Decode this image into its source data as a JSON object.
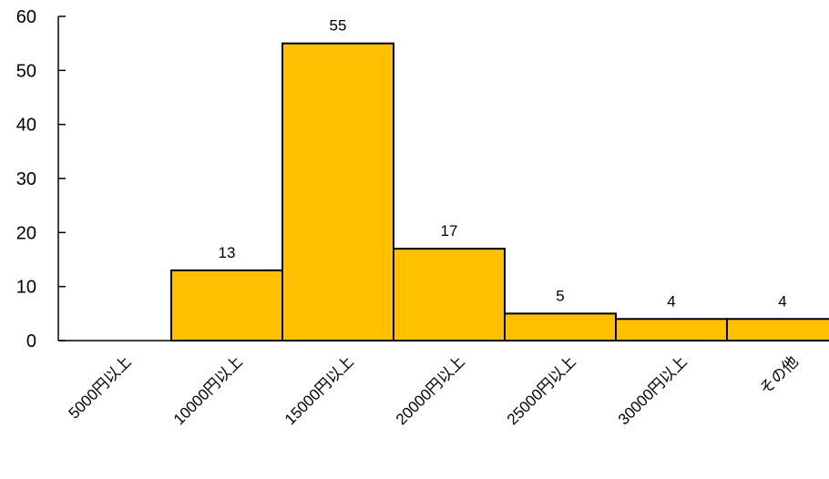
{
  "chart_data": {
    "type": "bar",
    "categories": [
      "5000円以上",
      "10000円以上",
      "15000円以上",
      "20000円以上",
      "25000円以上",
      "30000円以上",
      "その他"
    ],
    "values": [
      0,
      13,
      55,
      17,
      5,
      4,
      4
    ],
    "data_labels": [
      "",
      "13",
      "55",
      "17",
      "5",
      "4",
      "4"
    ],
    "title": "",
    "xlabel": "",
    "ylabel": "",
    "ylim": [
      0,
      60
    ],
    "yticks": [
      "0",
      "10",
      "20",
      "30",
      "40",
      "50",
      "60"
    ],
    "grid": false,
    "legend": "none",
    "bar_color": "#FFC000",
    "bar_edge_color": "#000000",
    "bar_gap": 0
  }
}
